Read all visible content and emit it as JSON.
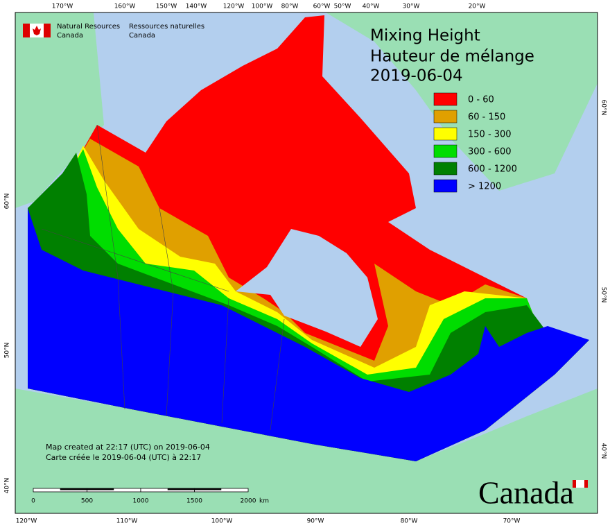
{
  "map": {
    "agency": {
      "en_line1": "Natural Resources",
      "en_line2": "Canada",
      "fr_line1": "Ressources naturelles",
      "fr_line2": "Canada"
    },
    "title": {
      "line1": "Mixing Height",
      "line2": "Hauteur de mélange",
      "date": "2019-06-04"
    },
    "legend": [
      {
        "label": "0 - 60",
        "color": "#ff0000"
      },
      {
        "label": "60 - 150",
        "color": "#e0a000"
      },
      {
        "label": "150 - 300",
        "color": "#ffff00"
      },
      {
        "label": "300 - 600",
        "color": "#00dd00"
      },
      {
        "label": "600 - 1200",
        "color": "#008000"
      },
      {
        "label": "> 1200",
        "color": "#0000ff"
      }
    ],
    "top_labels": [
      "170°W",
      "160°W",
      "150°W",
      "140°W",
      "120°W",
      "100°W",
      "80°W",
      "60°W",
      "50°W",
      "40°W",
      "30°W",
      "20°W"
    ],
    "bottom_labels": [
      "120°W",
      "110°W",
      "100°W",
      "90°W",
      "80°W",
      "70°W"
    ],
    "left_labels": [
      "60°N",
      "50°N",
      "40°N"
    ],
    "right_labels": [
      "60°N",
      "50°N",
      "40°N"
    ],
    "created": {
      "en": "Map created at 22:17 (UTC) on 2019-06-04",
      "fr": "Carte créée le 2019-06-04 (UTC) à 22:17"
    },
    "scale": {
      "ticks": [
        "0",
        "500",
        "1000",
        "1500",
        "2000"
      ],
      "unit": "km"
    },
    "wordmark": "Canada"
  }
}
